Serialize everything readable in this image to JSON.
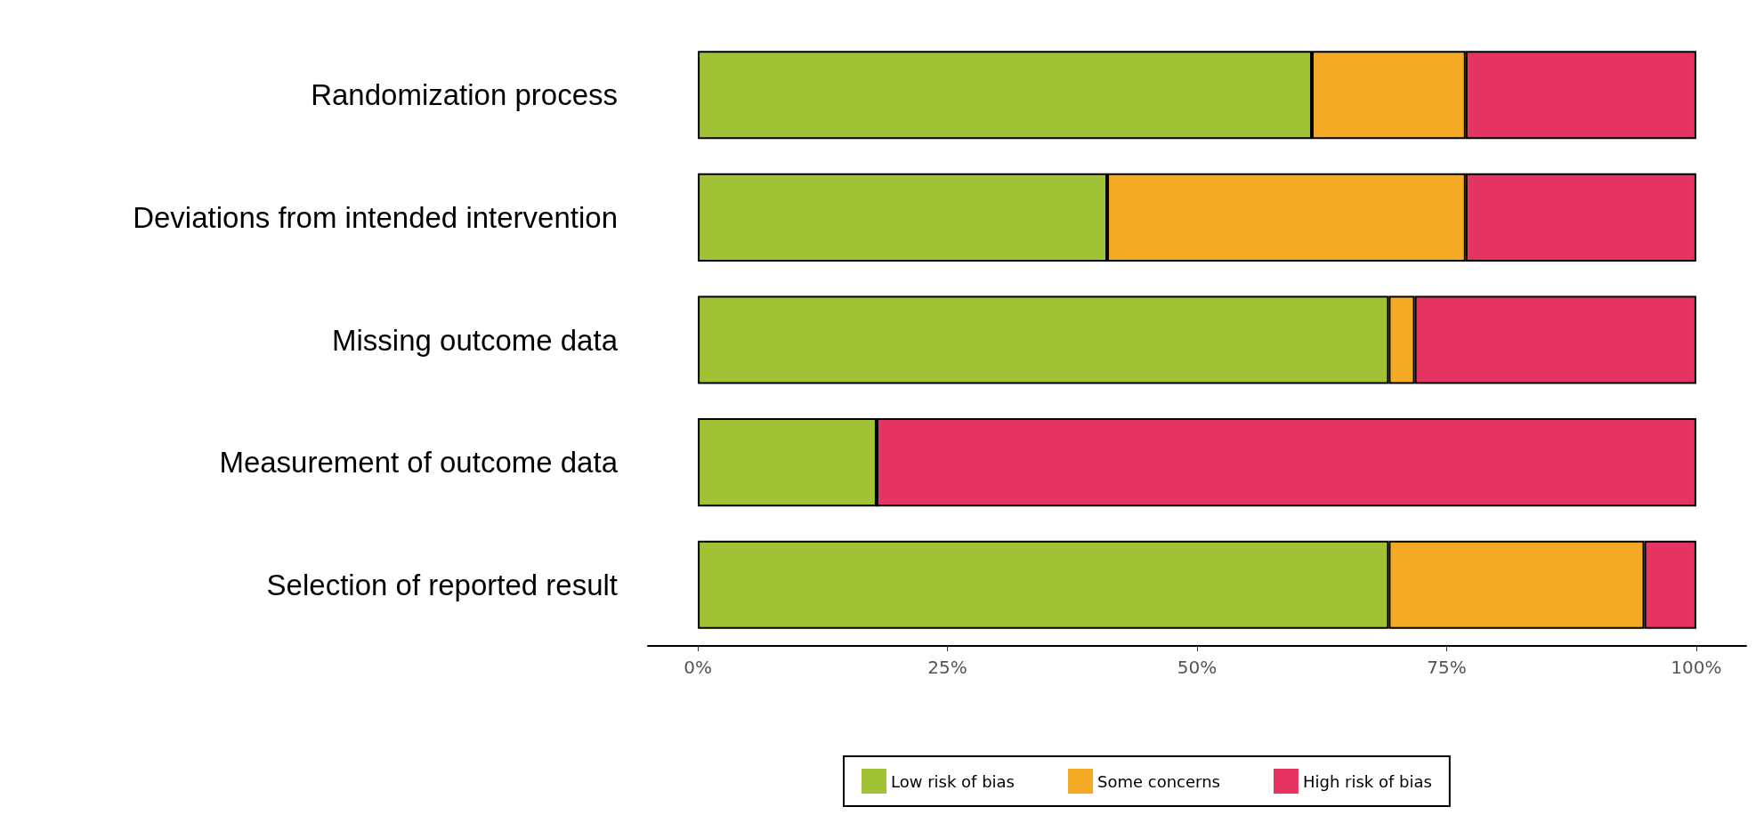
{
  "chart_data": {
    "type": "bar",
    "orientation": "horizontal",
    "stacked": true,
    "categories": [
      "Randomization process",
      "Deviations from intended intervention",
      "Missing outcome data",
      "Measurement of outcome data",
      "Selection of reported result"
    ],
    "series": [
      {
        "name": "Low risk of bias",
        "color": "#a2c235",
        "values": [
          61.5,
          41.0,
          69.2,
          17.9,
          69.2
        ]
      },
      {
        "name": "Some concerns",
        "color": "#f4aa24",
        "values": [
          15.4,
          35.9,
          2.6,
          0,
          25.6
        ]
      },
      {
        "name": "High risk of bias",
        "color": "#e63462",
        "values": [
          23.1,
          23.1,
          28.2,
          82.1,
          5.2
        ]
      }
    ],
    "xlim": [
      -5,
      105
    ],
    "xticks": [
      {
        "value": 0,
        "label": "0%"
      },
      {
        "value": 25,
        "label": "25%"
      },
      {
        "value": 50,
        "label": "50%"
      },
      {
        "value": 75,
        "label": "75%"
      },
      {
        "value": 100,
        "label": "100%"
      }
    ],
    "grid": false,
    "legend": "bottom"
  }
}
